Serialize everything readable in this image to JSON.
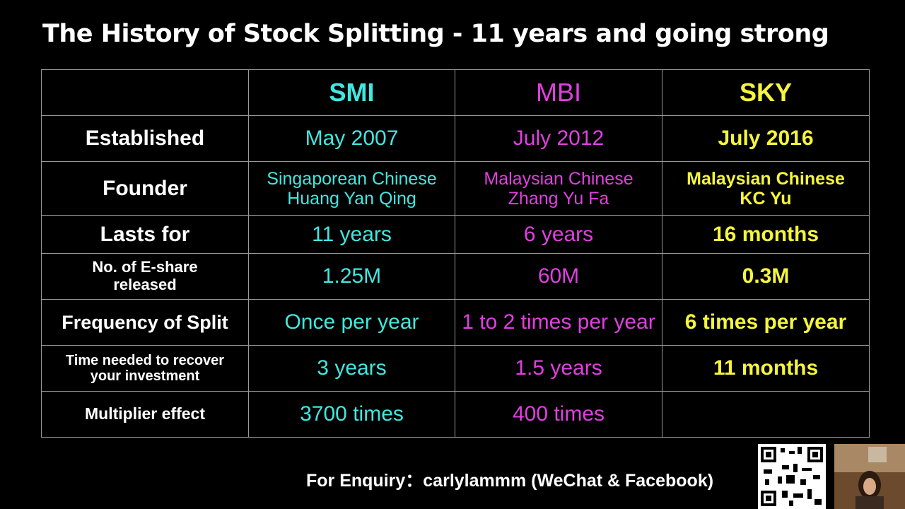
{
  "header": {
    "title": "The History of Stock Splitting - 11 years and going strong"
  },
  "table": {
    "columns": [
      null,
      "SMI",
      "MBI",
      "SKY"
    ],
    "column_colors": [
      "#ffffff",
      "#40e8e0",
      "#e040e0",
      "#f5f53c"
    ],
    "rows": [
      [
        "Established",
        "May 2007",
        "July 2012",
        "July 2016"
      ],
      [
        "Founder",
        "Singaporean Chinese\nHuang Yan Qing",
        "Malaysian Chinese\nZhang Yu Fa",
        "Malaysian Chinese\nKC Yu"
      ],
      [
        "Lasts for",
        "11 years",
        "6 years",
        "16 months"
      ],
      [
        "No. of E-share\nreleased",
        "1.25M",
        "60M",
        "0.3M"
      ],
      [
        "Frequency of Split",
        "Once per year",
        "1 to 2 times per year",
        "6 times per year"
      ],
      [
        "Time needed to recover\nyour investment",
        "3 years",
        "1.5 years",
        "11 months"
      ],
      [
        "Multiplier effect",
        "3700 times",
        "400 times",
        null
      ]
    ]
  },
  "footer": {
    "enquiry": "For Enquiry：carlylammm (WeChat & Facebook)"
  }
}
